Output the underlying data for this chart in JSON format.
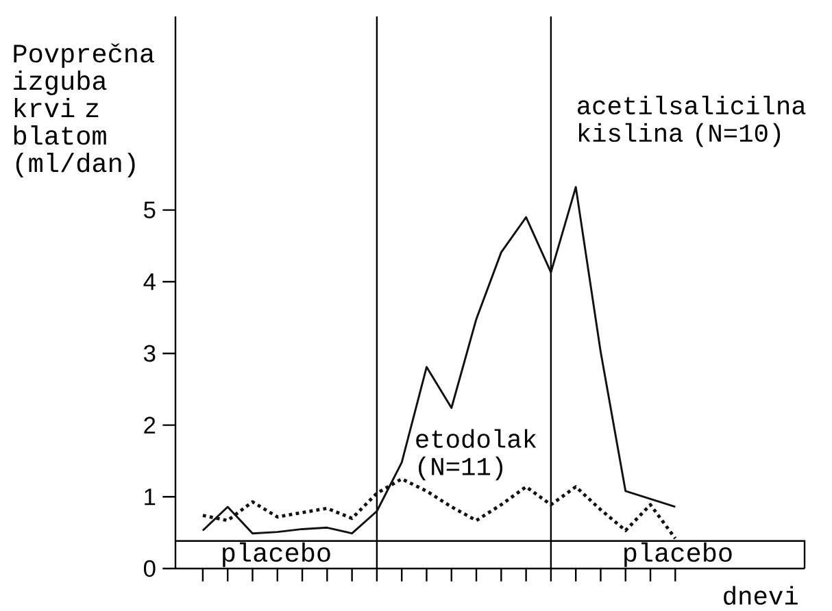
{
  "chart_data": {
    "type": "line",
    "ylabel": "Povprečna izguba krvi z blatom (ml/dan)",
    "xlabel": "dnevi",
    "categories": [
      null,
      null,
      null,
      null,
      null,
      null,
      null,
      null,
      null,
      null,
      null,
      null,
      null,
      null,
      null,
      null,
      null,
      null,
      null,
      null
    ],
    "series": [
      {
        "name": "acetilsalicilna kislina (N=10)",
        "color": "#111111",
        "line_style": "solid",
        "values": [
          0.53,
          0.86,
          0.49,
          0.51,
          0.55,
          0.57,
          0.49,
          0.8,
          1.48,
          2.81,
          2.24,
          3.48,
          4.41,
          4.9,
          4.13,
          5.32,
          3.02,
          1.08,
          0.97,
          0.86
        ]
      },
      {
        "name": "etodolak (N=11)",
        "color": "#111111",
        "line_style": "dotted",
        "values": [
          0.74,
          0.67,
          0.93,
          0.72,
          0.78,
          0.84,
          0.7,
          1.05,
          1.25,
          1.08,
          0.86,
          0.67,
          0.89,
          1.14,
          0.89,
          1.14,
          0.82,
          0.53,
          0.89,
          0.42
        ]
      }
    ],
    "ylim": [
      0,
      7.7
    ],
    "yticks": [
      0,
      1,
      2,
      3,
      4,
      5
    ],
    "annotations": [
      "placebo",
      "placebo"
    ]
  }
}
